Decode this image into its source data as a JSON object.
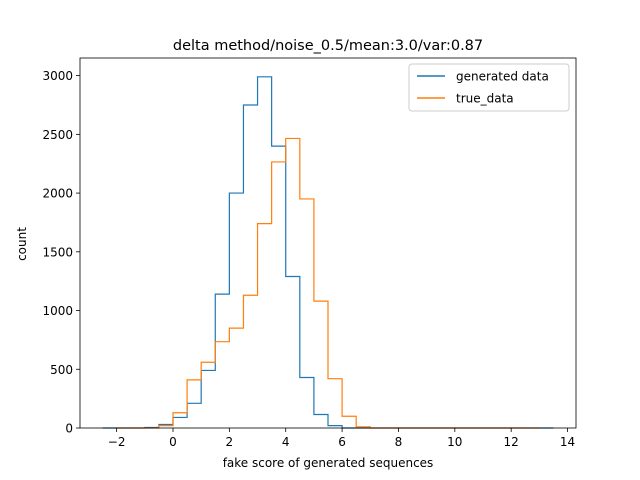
{
  "chart_data": {
    "type": "histogram",
    "title": "delta method/noise_0.5/mean:3.0/var:0.87",
    "xlabel": "fake score of generated sequences",
    "ylabel": "count",
    "xlim": [
      -3.3,
      14.3
    ],
    "ylim": [
      0,
      3150
    ],
    "x_ticks": [
      -2,
      0,
      2,
      4,
      6,
      8,
      10,
      12,
      14
    ],
    "y_ticks": [
      0,
      500,
      1000,
      1500,
      2000,
      2500,
      3000
    ],
    "grid": false,
    "legend_position": "top-right",
    "series": [
      {
        "name": "generated data",
        "color": "#1f77b4",
        "bin_edges": [
          -2.5,
          -2.0,
          -1.5,
          -1.0,
          -0.5,
          0.0,
          0.5,
          1.0,
          1.5,
          2.0,
          2.5,
          3.0,
          3.5,
          4.0,
          4.5,
          5.0,
          5.5,
          6.0,
          6.5,
          7.0,
          7.5,
          8.0,
          8.5,
          9.0,
          9.5,
          10.0,
          10.5,
          11.0,
          11.5,
          12.0,
          12.5,
          13.0,
          13.5
        ],
        "counts": [
          0,
          0,
          0,
          5,
          30,
          90,
          210,
          490,
          1140,
          2000,
          2750,
          2990,
          2400,
          1290,
          430,
          115,
          20,
          0,
          0,
          0,
          0,
          0,
          0,
          0,
          0,
          0,
          0,
          0,
          0,
          0,
          0,
          0
        ]
      },
      {
        "name": "true_data",
        "color": "#ff7f0e",
        "bin_edges": [
          -2.0,
          -1.5,
          -1.0,
          -0.5,
          0.0,
          0.5,
          1.0,
          1.5,
          2.0,
          2.5,
          3.0,
          3.5,
          4.0,
          4.5,
          5.0,
          5.5,
          6.0,
          6.5,
          7.0,
          7.5,
          8.0,
          8.5,
          9.0,
          9.5,
          10.0,
          10.5,
          11.0,
          11.5,
          12.0,
          12.5,
          13.0
        ],
        "counts": [
          0,
          0,
          0,
          20,
          130,
          410,
          560,
          735,
          850,
          1130,
          1740,
          2265,
          2465,
          1950,
          1080,
          420,
          100,
          10,
          0,
          0,
          0,
          0,
          0,
          0,
          0,
          0,
          0,
          0,
          0,
          0
        ]
      }
    ]
  }
}
